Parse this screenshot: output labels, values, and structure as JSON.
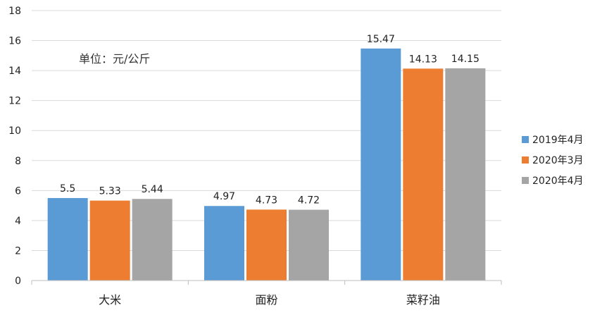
{
  "chart_data": {
    "type": "bar",
    "unit_note": "单位：元/公斤",
    "categories": [
      "大米",
      "面粉",
      "菜籽油"
    ],
    "series": [
      {
        "name": "2019年4月",
        "color": "#5b9bd5",
        "values": [
          5.5,
          4.97,
          15.47
        ],
        "labels": [
          "5.5",
          "4.97",
          "15.47"
        ]
      },
      {
        "name": "2020年3月",
        "color": "#ed7d31",
        "values": [
          5.33,
          4.73,
          14.13
        ],
        "labels": [
          "5.33",
          "4.73",
          "14.13"
        ]
      },
      {
        "name": "2020年4月",
        "color": "#a5a5a5",
        "values": [
          5.44,
          4.72,
          14.15
        ],
        "labels": [
          "5.44",
          "4.72",
          "14.15"
        ]
      }
    ],
    "ylim": [
      0,
      18
    ],
    "yticks": [
      "0",
      "2",
      "4",
      "6",
      "8",
      "10",
      "12",
      "14",
      "16",
      "18"
    ],
    "grid": true,
    "legend_position": "right"
  }
}
